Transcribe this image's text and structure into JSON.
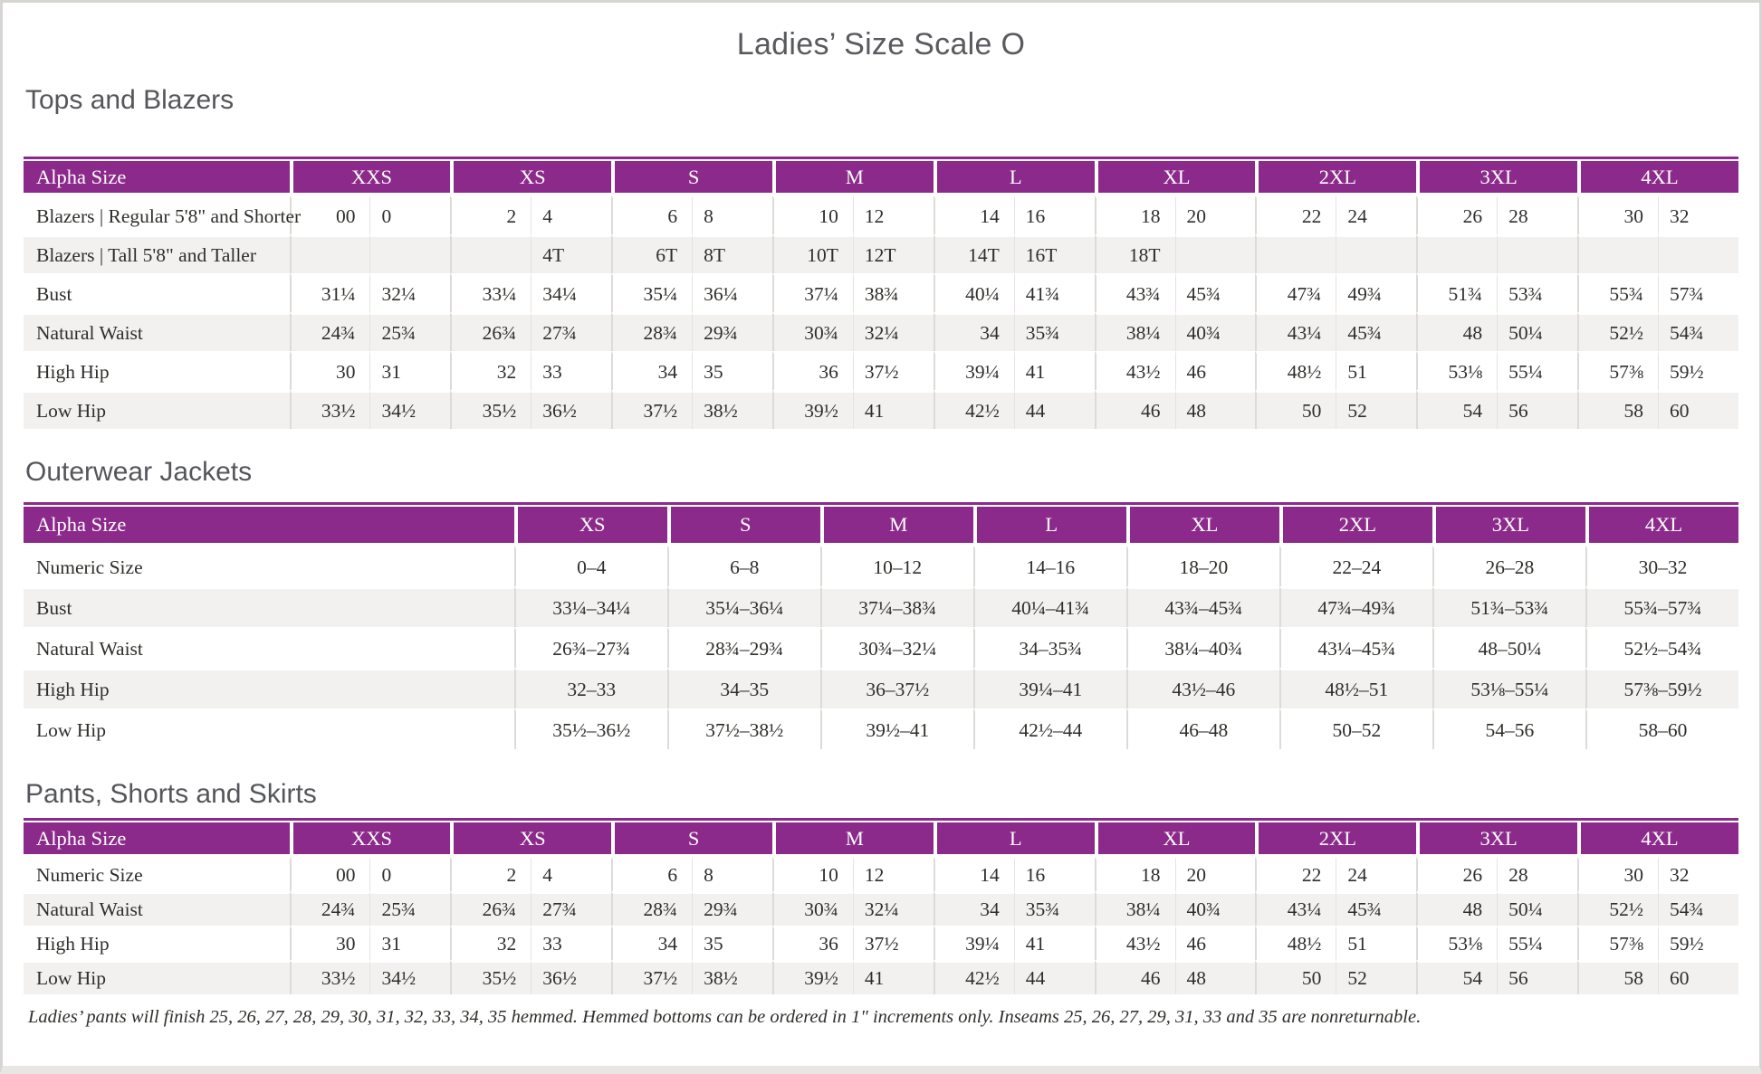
{
  "page": {
    "title": "Ladies’ Size Scale O",
    "footnote": "Ladies’ pants will finish 25, 26, 27, 28, 29, 30, 31, 32, 33, 34, 35 hemmed. Hemmed bottoms can be ordered in 1\" increments only. Inseams 25, 26, 27, 29, 31, 33 and 35 are nonreturnable."
  },
  "colors": {
    "accent_purple": "#8B2A8A",
    "row_stripe": "#F2F1EF",
    "heading_gray": "#55565A",
    "text_ink": "#2F2E2B"
  },
  "tables": [
    {
      "id": "tops-blazers",
      "heading": "Tops and Blazers",
      "type": "paired",
      "label_header": "Alpha Size",
      "groups": [
        "XXS",
        "XS",
        "S",
        "M",
        "L",
        "XL",
        "2XL",
        "3XL",
        "4XL"
      ],
      "rows": [
        {
          "label": "Blazers | Regular 5'8\" and Shorter",
          "cells": [
            [
              "00",
              "0"
            ],
            [
              "2",
              "4"
            ],
            [
              "6",
              "8"
            ],
            [
              "10",
              "12"
            ],
            [
              "14",
              "16"
            ],
            [
              "18",
              "20"
            ],
            [
              "22",
              "24"
            ],
            [
              "26",
              "28"
            ],
            [
              "30",
              "32"
            ]
          ]
        },
        {
          "label": "Blazers | Tall 5'8\" and Taller",
          "cells": [
            [
              "",
              ""
            ],
            [
              "",
              "4T"
            ],
            [
              "6T",
              "8T"
            ],
            [
              "10T",
              "12T"
            ],
            [
              "14T",
              "16T"
            ],
            [
              "18T",
              ""
            ],
            [
              "",
              ""
            ],
            [
              "",
              ""
            ],
            [
              "",
              ""
            ]
          ]
        },
        {
          "label": "Bust",
          "cells": [
            [
              "31¼",
              "32¼"
            ],
            [
              "33¼",
              "34¼"
            ],
            [
              "35¼",
              "36¼"
            ],
            [
              "37¼",
              "38¾"
            ],
            [
              "40¼",
              "41¾"
            ],
            [
              "43¾",
              "45¾"
            ],
            [
              "47¾",
              "49¾"
            ],
            [
              "51¾",
              "53¾"
            ],
            [
              "55¾",
              "57¾"
            ]
          ]
        },
        {
          "label": "Natural Waist",
          "cells": [
            [
              "24¾",
              "25¾"
            ],
            [
              "26¾",
              "27¾"
            ],
            [
              "28¾",
              "29¾"
            ],
            [
              "30¾",
              "32¼"
            ],
            [
              "34",
              "35¾"
            ],
            [
              "38¼",
              "40¾"
            ],
            [
              "43¼",
              "45¾"
            ],
            [
              "48",
              "50¼"
            ],
            [
              "52½",
              "54¾"
            ]
          ]
        },
        {
          "label": "High Hip",
          "cells": [
            [
              "30",
              "31"
            ],
            [
              "32",
              "33"
            ],
            [
              "34",
              "35"
            ],
            [
              "36",
              "37½"
            ],
            [
              "39¼",
              "41"
            ],
            [
              "43½",
              "46"
            ],
            [
              "48½",
              "51"
            ],
            [
              "53⅛",
              "55¼"
            ],
            [
              "57⅜",
              "59½"
            ]
          ]
        },
        {
          "label": "Low Hip",
          "cells": [
            [
              "33½",
              "34½"
            ],
            [
              "35½",
              "36½"
            ],
            [
              "37½",
              "38½"
            ],
            [
              "39½",
              "41"
            ],
            [
              "42½",
              "44"
            ],
            [
              "46",
              "48"
            ],
            [
              "50",
              "52"
            ],
            [
              "54",
              "56"
            ],
            [
              "58",
              "60"
            ]
          ]
        }
      ]
    },
    {
      "id": "outerwear",
      "heading": "Outerwear Jackets",
      "type": "single",
      "label_header": "Alpha Size",
      "groups": [
        "XS",
        "S",
        "M",
        "L",
        "XL",
        "2XL",
        "3XL",
        "4XL"
      ],
      "rows": [
        {
          "label": "Numeric Size",
          "cells": [
            "0–4",
            "6–8",
            "10–12",
            "14–16",
            "18–20",
            "22–24",
            "26–28",
            "30–32"
          ]
        },
        {
          "label": "Bust",
          "cells": [
            "33¼–34¼",
            "35¼–36¼",
            "37¼–38¾",
            "40¼–41¾",
            "43¾–45¾",
            "47¾–49¾",
            "51¾–53¾",
            "55¾–57¾"
          ]
        },
        {
          "label": "Natural Waist",
          "cells": [
            "26¾–27¾",
            "28¾–29¾",
            "30¾–32¼",
            "34–35¾",
            "38¼–40¾",
            "43¼–45¾",
            "48–50¼",
            "52½–54¾"
          ]
        },
        {
          "label": "High Hip",
          "cells": [
            "32–33",
            "34–35",
            "36–37½",
            "39¼–41",
            "43½–46",
            "48½–51",
            "53⅛–55¼",
            "57⅜–59½"
          ]
        },
        {
          "label": "Low Hip",
          "cells": [
            "35½–36½",
            "37½–38½",
            "39½–41",
            "42½–44",
            "46–48",
            "50–52",
            "54–56",
            "58–60"
          ]
        }
      ]
    },
    {
      "id": "pants",
      "heading": "Pants, Shorts and Skirts",
      "type": "paired",
      "label_header": "Alpha Size",
      "groups": [
        "XXS",
        "XS",
        "S",
        "M",
        "L",
        "XL",
        "2XL",
        "3XL",
        "4XL"
      ],
      "rows": [
        {
          "label": "Numeric Size",
          "cells": [
            [
              "00",
              "0"
            ],
            [
              "2",
              "4"
            ],
            [
              "6",
              "8"
            ],
            [
              "10",
              "12"
            ],
            [
              "14",
              "16"
            ],
            [
              "18",
              "20"
            ],
            [
              "22",
              "24"
            ],
            [
              "26",
              "28"
            ],
            [
              "30",
              "32"
            ]
          ]
        },
        {
          "label": "Natural Waist",
          "cells": [
            [
              "24¾",
              "25¾"
            ],
            [
              "26¾",
              "27¾"
            ],
            [
              "28¾",
              "29¾"
            ],
            [
              "30¾",
              "32¼"
            ],
            [
              "34",
              "35¾"
            ],
            [
              "38¼",
              "40¾"
            ],
            [
              "43¼",
              "45¾"
            ],
            [
              "48",
              "50¼"
            ],
            [
              "52½",
              "54¾"
            ]
          ]
        },
        {
          "label": "High Hip",
          "cells": [
            [
              "30",
              "31"
            ],
            [
              "32",
              "33"
            ],
            [
              "34",
              "35"
            ],
            [
              "36",
              "37½"
            ],
            [
              "39¼",
              "41"
            ],
            [
              "43½",
              "46"
            ],
            [
              "48½",
              "51"
            ],
            [
              "53⅛",
              "55¼"
            ],
            [
              "57⅜",
              "59½"
            ]
          ]
        },
        {
          "label": "Low Hip",
          "cells": [
            [
              "33½",
              "34½"
            ],
            [
              "35½",
              "36½"
            ],
            [
              "37½",
              "38½"
            ],
            [
              "39½",
              "41"
            ],
            [
              "42½",
              "44"
            ],
            [
              "46",
              "48"
            ],
            [
              "50",
              "52"
            ],
            [
              "54",
              "56"
            ],
            [
              "58",
              "60"
            ]
          ]
        }
      ]
    }
  ]
}
